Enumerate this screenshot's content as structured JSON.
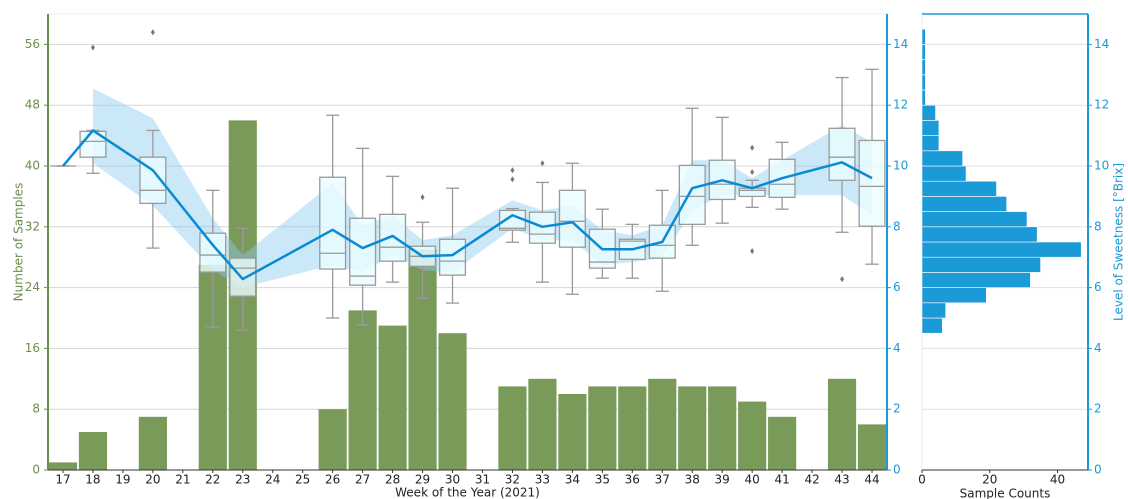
{
  "chart_data": [
    {
      "type": "combo",
      "xlabel": "Week of the Year (2021)",
      "ylabel": "Number of Samples",
      "xlim": [
        16.5,
        44.5
      ],
      "xticks": [
        17,
        18,
        19,
        20,
        21,
        22,
        23,
        24,
        25,
        26,
        27,
        28,
        29,
        30,
        31,
        32,
        33,
        34,
        35,
        36,
        37,
        38,
        39,
        40,
        41,
        42,
        43,
        44
      ],
      "ylim": [
        0,
        60
      ],
      "yticks": [
        0,
        8,
        16,
        24,
        32,
        40,
        48,
        56
      ],
      "y2lim": [
        0,
        15
      ],
      "y2ticks": [
        0,
        2,
        4,
        6,
        8,
        10,
        12,
        14
      ],
      "grid": true,
      "ycolor": "#6b8e4e",
      "y2color": "#1a9ad6",
      "series": [
        {
          "type": "bar",
          "axis": "y",
          "color": "#7a9a5a",
          "x": [
            17,
            18,
            20,
            22,
            23,
            26,
            27,
            28,
            29,
            30,
            32,
            33,
            34,
            35,
            36,
            37,
            38,
            39,
            40,
            41,
            43,
            44
          ],
          "values": [
            1,
            5,
            7,
            27,
            46,
            8,
            21,
            19,
            29,
            18,
            11,
            12,
            10,
            11,
            11,
            12,
            11,
            11,
            9,
            7,
            12,
            6
          ]
        },
        {
          "type": "line",
          "axis": "y2",
          "color": "#0a8ad4",
          "x": [
            17,
            18,
            20,
            22,
            23,
            26,
            27,
            28,
            29,
            30,
            32,
            33,
            34,
            35,
            36,
            37,
            38,
            39,
            40,
            41,
            43,
            44
          ],
          "values": [
            10.0,
            11.17,
            9.86,
            7.4,
            6.28,
            7.9,
            7.3,
            7.7,
            7.03,
            7.07,
            8.38,
            8.0,
            8.15,
            7.26,
            7.26,
            7.5,
            9.27,
            9.53,
            9.27,
            9.6,
            10.12,
            9.6
          ]
        }
      ],
      "band": {
        "axis": "y2",
        "color": "#8ccdf0",
        "x": [
          18,
          20,
          22,
          23,
          26,
          27,
          28,
          29,
          30,
          32,
          33,
          34,
          35,
          36,
          37,
          38,
          39,
          40,
          41,
          43,
          44
        ],
        "lower": [
          10.09,
          8.7,
          6.57,
          6.01,
          6.74,
          6.5,
          7.07,
          6.57,
          6.5,
          7.95,
          7.56,
          7.56,
          6.74,
          6.84,
          6.97,
          8.54,
          9.04,
          9.04,
          9.04,
          9.04,
          8.38
        ],
        "upper": [
          12.55,
          11.57,
          8.28,
          7.07,
          9.43,
          8.05,
          8.38,
          7.56,
          7.72,
          8.87,
          8.54,
          8.7,
          7.88,
          7.72,
          8.05,
          10.19,
          10.19,
          9.6,
          10.19,
          11.34,
          10.78
        ]
      },
      "boxes": {
        "axis": "y2",
        "color": "#9a9a9a",
        "fill": "#eafcff",
        "x": [
          17,
          18,
          20,
          22,
          23,
          26,
          27,
          28,
          29,
          30,
          32,
          33,
          34,
          35,
          36,
          37,
          38,
          39,
          40,
          41,
          43,
          44
        ],
        "whisker_low": [
          10.0,
          9.76,
          7.3,
          4.7,
          4.6,
          5.0,
          4.77,
          6.18,
          5.65,
          5.49,
          7.49,
          6.18,
          5.78,
          6.31,
          6.31,
          5.88,
          7.39,
          8.12,
          8.64,
          8.58,
          7.82,
          6.77
        ],
        "q1": [
          10.0,
          10.29,
          8.77,
          6.51,
          5.72,
          6.61,
          6.08,
          6.87,
          6.7,
          6.41,
          7.89,
          7.46,
          7.33,
          6.64,
          6.93,
          6.97,
          8.08,
          8.9,
          9.0,
          8.97,
          9.53,
          8.02
        ],
        "median": [
          10.0,
          10.81,
          9.2,
          7.07,
          6.64,
          7.13,
          6.38,
          7.33,
          7.03,
          6.87,
          7.95,
          7.76,
          8.18,
          6.84,
          7.53,
          7.39,
          9.0,
          9.4,
          9.2,
          9.4,
          10.29,
          9.33
        ],
        "q3": [
          10.0,
          11.14,
          10.29,
          7.79,
          6.97,
          9.63,
          8.28,
          8.41,
          7.36,
          7.59,
          8.54,
          8.48,
          9.2,
          7.92,
          7.59,
          8.05,
          10.02,
          10.19,
          9.27,
          10.22,
          11.24,
          10.84
        ],
        "whisker_high": [
          10.0,
          11.17,
          11.17,
          9.2,
          7.95,
          11.67,
          10.58,
          9.66,
          8.15,
          9.27,
          8.6,
          9.46,
          10.09,
          8.58,
          8.08,
          9.2,
          11.9,
          11.6,
          9.53,
          10.78,
          12.91,
          13.18
        ],
        "outliers": {
          "x": [
            18,
            20,
            29,
            32,
            32,
            33,
            40,
            40,
            40,
            43
          ],
          "values": [
            13.9,
            14.4,
            8.97,
            9.86,
            9.56,
            10.09,
            10.6,
            9.8,
            7.2,
            6.28
          ]
        }
      }
    },
    {
      "type": "histogram",
      "orientation": "horizontal",
      "xlabel": "Sample Counts",
      "ylabel": "Level of Sweetness [°Brix]",
      "xlim": [
        0,
        49
      ],
      "xticks": [
        0,
        20,
        40
      ],
      "ylim": [
        0,
        15
      ],
      "yticks": [
        0,
        2,
        4,
        6,
        8,
        10,
        12,
        14
      ],
      "grid": true,
      "color": "#1a9ad6",
      "axis_color": "#1a9ad6",
      "bins": [
        4.5,
        5.0,
        5.5,
        6.0,
        6.5,
        7.0,
        7.5,
        8.0,
        8.5,
        9.0,
        9.5,
        10.0,
        10.5,
        11.0,
        11.5,
        12.0,
        12.5,
        13.0,
        13.5,
        14.0,
        14.5
      ],
      "counts": [
        6,
        7,
        19,
        32,
        35,
        47,
        34,
        31,
        25,
        22,
        13,
        12,
        5,
        5,
        4,
        1,
        1,
        1,
        1,
        1
      ]
    }
  ]
}
